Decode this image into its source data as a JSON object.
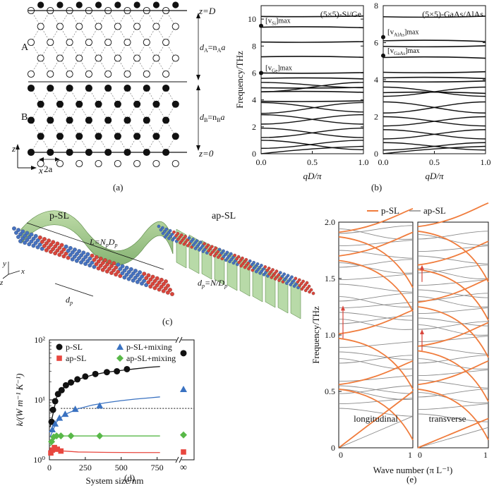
{
  "captions": {
    "a": "(a)",
    "b": "(b)",
    "c": "(c)",
    "d": "(d)",
    "e": "(e)"
  },
  "panel_a": {
    "z_top": "z=D",
    "z_bottom": "z=0",
    "label_A": "A",
    "label_B": "B",
    "dA": "d",
    "dA_sub": "A",
    "dA_eq": "=n",
    "dA_sub2": "A",
    "dA_end": "a",
    "dB": "d",
    "dB_sub": "B",
    "dB_eq": "=n",
    "dB_sub2": "B",
    "dB_end": "a",
    "axis_z": "z",
    "axis_x": "x",
    "lattice_const": "2a"
  },
  "panel_c": {
    "title_p": "p-SL",
    "title_ap": "ap-SL",
    "L_label": "L=N",
    "L_sub1": "p",
    "L_mid": "D",
    "L_sub2": "p",
    "dp_label": "d",
    "dp_sub": "p",
    "dp_ap_label": "d",
    "dp_ap_sub": "p",
    "dp_ap_rest": "=N/D",
    "dp_ap_sub2": "p",
    "axis_y": "y",
    "axis_z": "z",
    "axis_x": "x"
  },
  "chart_data": [
    {
      "id": "b-left",
      "type": "line",
      "title": "",
      "ylabel": "Frequency/THz",
      "xlabel": "qD/π",
      "xlim": [
        0,
        1.0
      ],
      "ylim": [
        0,
        11
      ],
      "xticks": [
        "0.0",
        "0.5",
        "1.0"
      ],
      "yticks": [
        "0",
        "2",
        "4",
        "6",
        "8",
        "10"
      ],
      "annotation_main": "(5×5)-Si/Ge",
      "annotation_vsi": "[v",
      "annotation_vsi_sub": "Si",
      "annotation_vsi_sup": "]max",
      "annotation_vge": "[v",
      "annotation_vge_sub": "Ge",
      "annotation_vge_sup": "]max",
      "marker_vsi": 9.5,
      "marker_vge": 6.0,
      "flat_levels": [
        10.2,
        9.4,
        8.3,
        7.2,
        6.0,
        5.6,
        4.9,
        4.6,
        3.9
      ],
      "crossing_pairs": [
        [
          5.3,
          4.9
        ],
        [
          4.6,
          5.3
        ],
        [
          3.8,
          3.1
        ],
        [
          3.0,
          3.8
        ],
        [
          2.9,
          2.2
        ],
        [
          2.2,
          2.9
        ],
        [
          1.9,
          1.2
        ],
        [
          1.2,
          1.9
        ],
        [
          1.0,
          0.3
        ],
        [
          0.4,
          1.0
        ]
      ],
      "acoustic_end": 0.55
    },
    {
      "id": "b-right",
      "type": "line",
      "title": "",
      "ylabel": "",
      "xlabel": "qD/π",
      "xlim": [
        0,
        1.0
      ],
      "ylim": [
        0,
        8
      ],
      "xticks": [
        "0.0",
        "0.5",
        "1.0"
      ],
      "yticks": [
        "0",
        "2",
        "4",
        "6",
        "8"
      ],
      "annotation_main": "(5×5)-GaAs/AlAs",
      "annotation_valas": "[v",
      "annotation_valas_sub": "AlAs",
      "annotation_valas_sup": "]max",
      "annotation_vgaas": "[v",
      "annotation_vgaas_sub": "GaAs",
      "annotation_vgaas_sup": "]max",
      "marker_valas": 6.3,
      "marker_vgaas": 5.3,
      "flat_levels": [
        7.4,
        6.1,
        5.8,
        5.2,
        4.4,
        4.1,
        3.9,
        3.3
      ],
      "crossing_pairs": [
        [
          3.6,
          3.1
        ],
        [
          3.1,
          3.6
        ],
        [
          2.8,
          2.2
        ],
        [
          2.2,
          2.8
        ],
        [
          2.0,
          1.5
        ],
        [
          1.5,
          2.0
        ],
        [
          1.3,
          0.8
        ],
        [
          0.8,
          1.3
        ],
        [
          0.6,
          0.2
        ],
        [
          0.2,
          0.6
        ]
      ],
      "acoustic_end": 0.4
    },
    {
      "id": "d",
      "type": "scatter",
      "title": "",
      "ylabel": "k/(W m⁻¹ K⁻¹)",
      "xlabel": "System size/nm",
      "yscale": "log",
      "ylim": [
        1,
        100
      ],
      "xlim": [
        0,
        900
      ],
      "xticks": [
        "0",
        "250",
        "500",
        "750",
        "∞"
      ],
      "yticks": [
        "10⁰",
        "10¹",
        "10²"
      ],
      "legend": [
        "p-SL",
        "ap-SL",
        "p-SL+mixing",
        "ap-SL+mixing"
      ],
      "legend_placement": "top",
      "dotted_reference": 7.2,
      "series": [
        {
          "name": "p-SL",
          "color": "#111111",
          "marker": "circle",
          "x": [
            15,
            25,
            40,
            60,
            85,
            115,
            150,
            195,
            250,
            320,
            400,
            470,
            540
          ],
          "y": [
            4.3,
            6.8,
            9.5,
            12.5,
            14.5,
            17.5,
            19.5,
            22,
            24.5,
            27,
            29,
            30,
            32.5
          ],
          "fit_x": [
            5,
            50,
            100,
            200,
            300,
            400,
            500,
            600,
            700,
            770
          ],
          "fit_y": [
            3.5,
            11,
            16,
            22,
            26,
            29,
            31,
            33,
            35,
            36
          ],
          "inf_value": 60
        },
        {
          "name": "ap-SL",
          "color": "#e8473f",
          "marker": "square",
          "x": [
            10,
            20,
            35,
            55,
            80
          ],
          "y": [
            1.3,
            1.45,
            1.6,
            1.5,
            1.4
          ],
          "fit_x": [
            5,
            30,
            60,
            100,
            200,
            400,
            600,
            770
          ],
          "fit_y": [
            1.25,
            1.55,
            1.45,
            1.4,
            1.35,
            1.33,
            1.32,
            1.32
          ],
          "inf_value": 1.35
        },
        {
          "name": "p-SL+mixing",
          "color": "#3a72c1",
          "marker": "triangle",
          "x": [
            20,
            40,
            70,
            110,
            180,
            350
          ],
          "y": [
            3.2,
            4.0,
            5.0,
            5.8,
            7.0,
            8.0
          ],
          "fit_x": [
            5,
            50,
            100,
            200,
            300,
            400,
            500,
            600,
            700,
            770
          ],
          "fit_y": [
            2.4,
            4.3,
            5.6,
            7.1,
            8.2,
            9.0,
            9.7,
            10.3,
            10.8,
            11.2
          ],
          "inf_value": 15
        },
        {
          "name": "ap-SL+mixing",
          "color": "#58b848",
          "marker": "diamond",
          "x": [
            15,
            30,
            50,
            80,
            150,
            350
          ],
          "y": [
            2.0,
            2.4,
            2.5,
            2.5,
            2.5,
            2.5
          ],
          "fit_x": [
            5,
            40,
            100,
            200,
            400,
            600,
            770
          ],
          "fit_y": [
            1.7,
            2.4,
            2.5,
            2.5,
            2.5,
            2.5,
            2.5
          ],
          "inf_value": 2.6
        }
      ]
    },
    {
      "id": "e",
      "type": "line",
      "title": "",
      "ylabel": "Frequency/THz",
      "xlabel": "Wave number (π L⁻¹)",
      "ylim": [
        0,
        2.0
      ],
      "yticks": [
        "0",
        "0.5",
        "1.0",
        "1.5",
        "2.0"
      ],
      "xticks_left": [
        "0",
        "1"
      ],
      "xticks_right": [
        "0",
        "1"
      ],
      "legend": [
        "p-SL",
        "ap-SL"
      ],
      "legend_colors": [
        "#f07c3c",
        "#8a8a8a"
      ],
      "legend_placement": "top",
      "sub_labels": [
        "longitudinal",
        "transverse"
      ],
      "orange_levels_left": [
        0.52,
        0.97,
        1.66,
        1.87
      ],
      "orange_levels_right": [
        0.52,
        0.86,
        1.25,
        1.58,
        1.92
      ],
      "arrows_left": [
        [
          0.97,
          1.26
        ]
      ],
      "arrows_right": [
        [
          0.86,
          1.05
        ],
        [
          1.47,
          1.62
        ]
      ],
      "gray_levels_left": [
        0.35,
        0.48,
        0.55,
        0.75,
        0.85,
        1.1,
        1.2,
        1.3,
        1.45,
        1.6,
        1.75,
        1.9
      ],
      "gray_levels_right": [
        0.3,
        0.45,
        0.6,
        0.75,
        0.9,
        1.05,
        1.15,
        1.3,
        1.4,
        1.55,
        1.7,
        1.85
      ]
    }
  ]
}
